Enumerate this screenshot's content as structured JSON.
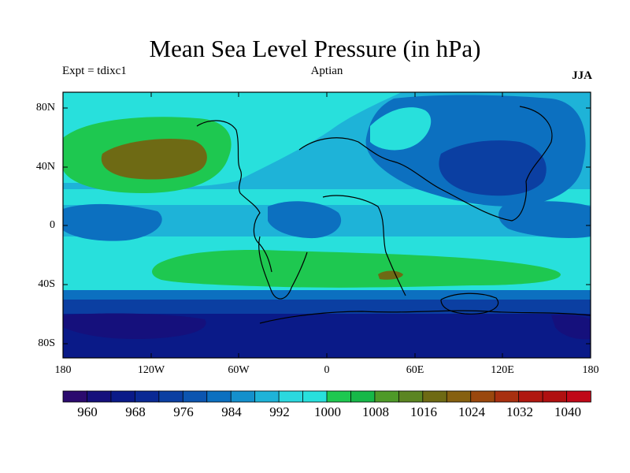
{
  "title": "Mean Sea Level Pressure (in hPa)",
  "experiment_label": "Expt = tdixc1",
  "period_label": "Aptian",
  "season_label": "JJA",
  "map": {
    "lat_ticks": [
      "80N",
      "40N",
      "0",
      "40S",
      "80S"
    ],
    "lon_ticks": [
      "180",
      "120W",
      "60W",
      "0",
      "60E",
      "120E",
      "180"
    ]
  },
  "colorbar": {
    "labels": [
      "960",
      "968",
      "976",
      "984",
      "992",
      "1000",
      "1008",
      "1016",
      "1024",
      "1032",
      "1040"
    ],
    "colors": [
      "#2b0a6e",
      "#15107c",
      "#0a1a88",
      "#0a2994",
      "#0b3fa2",
      "#0c55b0",
      "#0c70c0",
      "#1490cc",
      "#1eb3d8",
      "#2bd8df",
      "#28e0dc",
      "#1ec850",
      "#16b848",
      "#4e9a28",
      "#5b8522",
      "#6e6a14",
      "#866010",
      "#9a480e",
      "#a83010",
      "#b01810",
      "#b01010",
      "#c00818"
    ]
  },
  "palette": {
    "deep": "#0a1a88",
    "dark_blue": "#0b3fa2",
    "mid_blue": "#0c70c0",
    "light_blue": "#1eb3d8",
    "cyan": "#28e0dc",
    "green": "#1ec850",
    "olive": "#6e6a14"
  }
}
